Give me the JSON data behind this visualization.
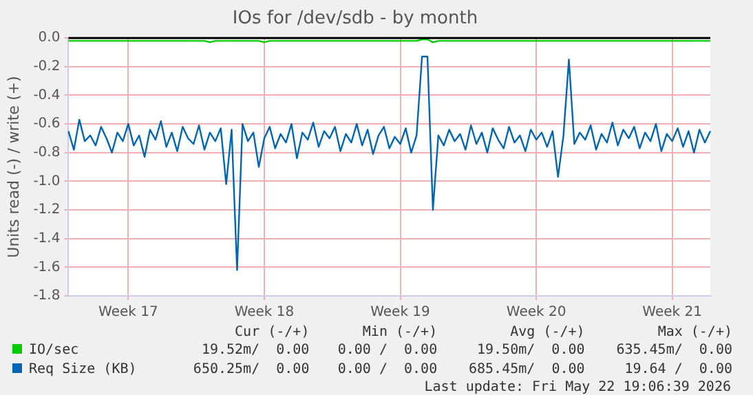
{
  "chart_data": {
    "type": "line",
    "title": "IOs for /dev/sdb - by month",
    "ylabel": "Units read (-) / write (+)",
    "categories": [
      null,
      null,
      null,
      null,
      null,
      null,
      null,
      null,
      null,
      null,
      null,
      "Week 17",
      null,
      null,
      null,
      null,
      null,
      null,
      null,
      null,
      null,
      null,
      null,
      null,
      null,
      null,
      null,
      null,
      null,
      null,
      null,
      null,
      null,
      null,
      null,
      null,
      "Week 18",
      null,
      null,
      null,
      null,
      null,
      null,
      null,
      null,
      null,
      null,
      null,
      null,
      null,
      null,
      null,
      null,
      null,
      null,
      null,
      null,
      null,
      null,
      null,
      null,
      "Week 19",
      null,
      null,
      null,
      null,
      null,
      null,
      null,
      null,
      null,
      null,
      null,
      null,
      null,
      null,
      null,
      null,
      null,
      null,
      null,
      null,
      null,
      null,
      null,
      null,
      "Week 20",
      null,
      null,
      null,
      null,
      null,
      null,
      null,
      null,
      null,
      null,
      null,
      null,
      null,
      null,
      null,
      null,
      null,
      null,
      null,
      null,
      null,
      null,
      null,
      null,
      "Week 21",
      null,
      null,
      null,
      null,
      null,
      null,
      null
    ],
    "ylim": [
      -1.8,
      0
    ],
    "yticks": [
      {
        "value": 0,
        "label": "0.0"
      },
      {
        "value": -0.2,
        "label": "-0.2"
      },
      {
        "value": -0.4,
        "label": "-0.4"
      },
      {
        "value": -0.6,
        "label": "-0.6"
      },
      {
        "value": -0.8,
        "label": "-0.8"
      },
      {
        "value": -1,
        "label": "-1.0"
      },
      {
        "value": -1.2,
        "label": "-1.2"
      },
      {
        "value": -1.4,
        "label": "-1.4"
      },
      {
        "value": -1.6,
        "label": "-1.6"
      },
      {
        "value": -1.8,
        "label": "-1.8"
      }
    ],
    "grid": true,
    "legend": "bottom",
    "marker": "none",
    "line_style": "solid",
    "ref_lines": [
      {
        "axis": "y",
        "value": 0,
        "color": "#000000"
      }
    ],
    "series": [
      {
        "name": "IO/sec",
        "color": "#00cc00",
        "values": [
          -0.02,
          -0.02,
          -0.02,
          -0.02,
          -0.02,
          -0.02,
          -0.02,
          -0.02,
          -0.02,
          -0.02,
          -0.02,
          -0.02,
          -0.02,
          -0.02,
          -0.02,
          -0.02,
          -0.02,
          -0.02,
          -0.02,
          -0.02,
          -0.02,
          -0.02,
          -0.02,
          -0.02,
          -0.02,
          -0.02,
          -0.03,
          -0.02,
          -0.02,
          -0.02,
          -0.02,
          -0.02,
          -0.02,
          -0.02,
          -0.02,
          -0.02,
          -0.03,
          -0.02,
          -0.02,
          -0.02,
          -0.02,
          -0.02,
          -0.02,
          -0.02,
          -0.02,
          -0.02,
          -0.02,
          -0.02,
          -0.02,
          -0.02,
          -0.02,
          -0.02,
          -0.02,
          -0.02,
          -0.02,
          -0.02,
          -0.02,
          -0.02,
          -0.02,
          -0.02,
          -0.02,
          -0.02,
          -0.02,
          -0.02,
          -0.02,
          -0.01,
          -0.01,
          -0.03,
          -0.02,
          -0.02,
          -0.02,
          -0.02,
          -0.02,
          -0.02,
          -0.02,
          -0.02,
          -0.02,
          -0.02,
          -0.02,
          -0.02,
          -0.02,
          -0.02,
          -0.02,
          -0.02,
          -0.02,
          -0.02,
          -0.02,
          -0.02,
          -0.02,
          -0.02,
          -0.02,
          -0.02,
          -0.02,
          -0.02,
          -0.02,
          -0.02,
          -0.02,
          -0.02,
          -0.02,
          -0.02,
          -0.02,
          -0.02,
          -0.02,
          -0.02,
          -0.02,
          -0.02,
          -0.02,
          -0.02,
          -0.02,
          -0.02,
          -0.02,
          -0.02,
          -0.02,
          -0.02,
          -0.02,
          -0.02,
          -0.02,
          -0.02,
          -0.02
        ]
      },
      {
        "name": "Req Size (KB)",
        "color": "#0066b3",
        "values": [
          -0.65,
          -0.78,
          -0.57,
          -0.72,
          -0.68,
          -0.75,
          -0.62,
          -0.7,
          -0.8,
          -0.66,
          -0.72,
          -0.6,
          -0.75,
          -0.68,
          -0.83,
          -0.64,
          -0.71,
          -0.58,
          -0.76,
          -0.66,
          -0.79,
          -0.62,
          -0.7,
          -0.74,
          -0.61,
          -0.78,
          -0.66,
          -0.72,
          -0.63,
          -1.02,
          -0.64,
          -1.62,
          -0.6,
          -0.72,
          -0.66,
          -0.9,
          -0.7,
          -0.62,
          -0.77,
          -0.67,
          -0.73,
          -0.6,
          -0.84,
          -0.66,
          -0.71,
          -0.59,
          -0.76,
          -0.65,
          -0.7,
          -0.62,
          -0.79,
          -0.67,
          -0.73,
          -0.6,
          -0.75,
          -0.64,
          -0.81,
          -0.68,
          -0.62,
          -0.77,
          -0.69,
          -0.74,
          -0.63,
          -0.8,
          -0.68,
          -0.13,
          -0.13,
          -1.2,
          -0.68,
          -0.75,
          -0.64,
          -0.72,
          -0.67,
          -0.78,
          -0.61,
          -0.74,
          -0.66,
          -0.8,
          -0.63,
          -0.71,
          -0.77,
          -0.62,
          -0.73,
          -0.68,
          -0.79,
          -0.64,
          -0.71,
          -0.66,
          -0.76,
          -0.65,
          -0.97,
          -0.68,
          -0.15,
          -0.74,
          -0.66,
          -0.71,
          -0.61,
          -0.78,
          -0.67,
          -0.73,
          -0.59,
          -0.75,
          -0.64,
          -0.7,
          -0.62,
          -0.77,
          -0.66,
          -0.72,
          -0.6,
          -0.79,
          -0.67,
          -0.72,
          -0.63,
          -0.76,
          -0.65,
          -0.8,
          -0.64,
          -0.73,
          -0.65
        ]
      }
    ],
    "annotations": [
      "Cur (-/+)",
      "Min (-/+)",
      "Avg (-/+)",
      "Max (-/+)",
      "19.52m/  0.00",
      "0.00 /  0.00",
      "19.50m/  0.00",
      "635.45m/  0.00",
      "650.25m/  0.00",
      "0.00 /  0.00",
      "685.45m/  0.00",
      "19.64 /  0.00",
      "Last update: Fri May 22 19:06:39 2026"
    ]
  }
}
